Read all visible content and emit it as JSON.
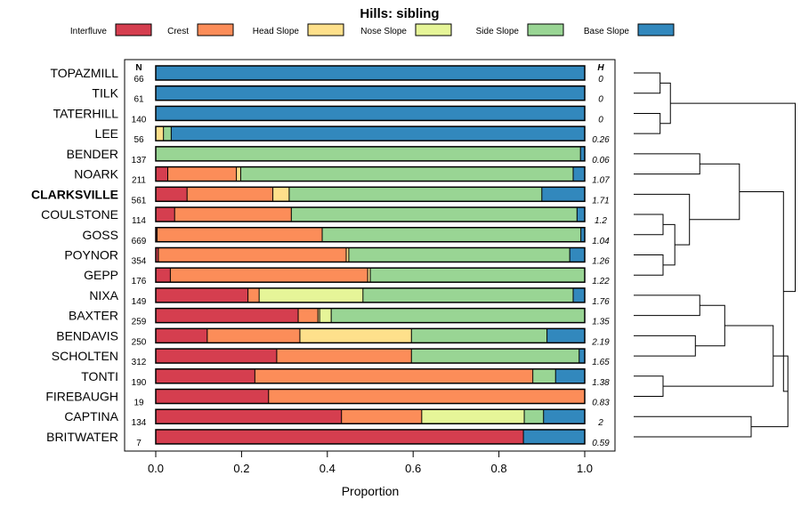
{
  "chart_data": {
    "type": "bar",
    "orientation": "horizontal",
    "stacked": true,
    "title": "Hills: sibling",
    "xlabel": "Proportion",
    "ylabel": "",
    "xlim": [
      0,
      1
    ],
    "xticks": [
      0,
      0.2,
      0.4,
      0.6,
      0.8,
      1
    ],
    "xtick_labels": [
      "0.0",
      "0.2",
      "0.4",
      "0.6",
      "0.8",
      "1.0"
    ],
    "n_header": "N",
    "h_header": "H",
    "legend_position": "top",
    "legend": [
      {
        "name": "Interfluve",
        "color": "#D53E4F"
      },
      {
        "name": "Crest",
        "color": "#FC8D59"
      },
      {
        "name": "Head Slope",
        "color": "#FEE08B"
      },
      {
        "name": "Nose Slope",
        "color": "#E6F598"
      },
      {
        "name": "Side Slope",
        "color": "#99D594"
      },
      {
        "name": "Base Slope",
        "color": "#3288BD"
      }
    ],
    "categories": [
      "TOPAZMILL",
      "TILK",
      "TATERHILL",
      "LEE",
      "BENDER",
      "NOARK",
      "CLARKSVILLE",
      "COULSTONE",
      "GOSS",
      "POYNOR",
      "GEPP",
      "NIXA",
      "BAXTER",
      "BENDAVIS",
      "SCHOLTEN",
      "TONTI",
      "FIREBAUGH",
      "CAPTINA",
      "BRITWATER"
    ],
    "highlight": "CLARKSVILLE",
    "rows": [
      {
        "name": "TOPAZMILL",
        "n": "66",
        "h": "0",
        "values": [
          0,
          0,
          0,
          0,
          0,
          1.0
        ]
      },
      {
        "name": "TILK",
        "n": "61",
        "h": "0",
        "values": [
          0,
          0,
          0,
          0,
          0,
          1.0
        ]
      },
      {
        "name": "TATERHILL",
        "n": "140",
        "h": "0",
        "values": [
          0,
          0,
          0,
          0,
          0,
          1.0
        ]
      },
      {
        "name": "LEE",
        "n": "56",
        "h": "0.26",
        "values": [
          0,
          0,
          0.018,
          0,
          0.018,
          0.964
        ]
      },
      {
        "name": "BENDER",
        "n": "137",
        "h": "0.06",
        "values": [
          0,
          0,
          0,
          0,
          0.99,
          0.01
        ]
      },
      {
        "name": "NOARK",
        "n": "211",
        "h": "1.07",
        "values": [
          0.028,
          0.16,
          0.01,
          0,
          0.775,
          0.027
        ]
      },
      {
        "name": "CLARKSVILLE",
        "n": "561",
        "h": "1.71",
        "values": [
          0.073,
          0.2,
          0.038,
          0,
          0.589,
          0.1
        ]
      },
      {
        "name": "COULSTONE",
        "n": "114",
        "h": "1.2",
        "values": [
          0.044,
          0.272,
          0,
          0,
          0.666,
          0.018
        ]
      },
      {
        "name": "GOSS",
        "n": "669",
        "h": "1.04",
        "values": [
          0.003,
          0.385,
          0,
          0,
          0.603,
          0.009
        ]
      },
      {
        "name": "POYNOR",
        "n": "354",
        "h": "1.26",
        "values": [
          0.006,
          0.438,
          0.006,
          0,
          0.515,
          0.035
        ]
      },
      {
        "name": "GEPP",
        "n": "176",
        "h": "1.22",
        "values": [
          0.034,
          0.46,
          0.006,
          0,
          0.5,
          0
        ]
      },
      {
        "name": "NIXA",
        "n": "149",
        "h": "1.76",
        "values": [
          0.215,
          0.026,
          0,
          0.242,
          0.49,
          0.027
        ]
      },
      {
        "name": "BAXTER",
        "n": "259",
        "h": "1.35",
        "values": [
          0.332,
          0.046,
          0.004,
          0.027,
          0.591,
          0
        ]
      },
      {
        "name": "BENDAVIS",
        "n": "250",
        "h": "2.19",
        "values": [
          0.12,
          0.216,
          0.26,
          0,
          0.316,
          0.088
        ]
      },
      {
        "name": "SCHOLTEN",
        "n": "312",
        "h": "1.65",
        "values": [
          0.282,
          0.314,
          0,
          0,
          0.391,
          0.013
        ]
      },
      {
        "name": "TONTI",
        "n": "190",
        "h": "1.38",
        "values": [
          0.231,
          0.648,
          0,
          0,
          0.053,
          0.068
        ]
      },
      {
        "name": "FIREBAUGH",
        "n": "19",
        "h": "0.83",
        "values": [
          0.263,
          0.737,
          0,
          0,
          0,
          0
        ]
      },
      {
        "name": "CAPTINA",
        "n": "134",
        "h": "2",
        "values": [
          0.433,
          0.187,
          0,
          0.239,
          0.045,
          0.096
        ]
      },
      {
        "name": "BRITWATER",
        "n": "7",
        "h": "0.59",
        "values": [
          0.857,
          0,
          0,
          0,
          0,
          0.143
        ]
      }
    ],
    "dendrogram": {
      "type": "hierarchical-clustering",
      "merges": [
        [
          "TATERHILL",
          "LEE",
          0.18
        ],
        [
          "TOPAZMILL",
          "TILK",
          0.18
        ],
        [
          "TOPAZMILL",
          "TATERHILL",
          0.25
        ],
        [
          "BENDER",
          "NOARK",
          0.45
        ],
        [
          "COULSTONE",
          "GOSS",
          0.2
        ],
        [
          "POYNOR",
          "GEPP",
          0.2
        ],
        [
          "COULSTONE",
          "POYNOR",
          0.28
        ],
        [
          "CLARKSVILLE",
          "COULSTONE",
          0.38
        ],
        [
          "BENDER",
          "CLARKSVILLE",
          0.72
        ],
        [
          "NIXA",
          "BAXTER",
          0.45
        ],
        [
          "BENDAVIS",
          "SCHOLTEN",
          0.42
        ],
        [
          "NIXA",
          "BENDAVIS",
          0.62
        ],
        [
          "TONTI",
          "FIREBAUGH",
          0.2
        ],
        [
          "NIXA",
          "TONTI",
          0.95
        ],
        [
          "CAPTINA",
          "BRITWATER",
          0.8
        ],
        [
          "NIXA",
          "CAPTINA",
          1.05
        ],
        [
          "BENDER",
          "NIXA",
          1.02
        ],
        [
          "TOPAZMILL",
          "BENDER",
          1.1
        ]
      ]
    }
  }
}
